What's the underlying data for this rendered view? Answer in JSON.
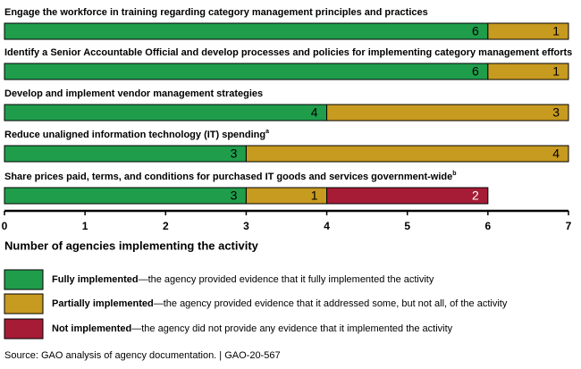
{
  "chart_data": {
    "type": "stacked-barh",
    "categories": [
      "Engage the workforce in training regarding category management principles and practices",
      "Identify a Senior Accountable Official and develop processes and policies for implementing category management efforts",
      "Develop and implement vendor management strategies",
      "Reduce unaligned information technology (IT) spending",
      "Share prices paid, terms, and conditions for purchased IT goods and services government-wide"
    ],
    "category_superscripts": {
      "3": "a",
      "4": "b"
    },
    "series": [
      {
        "name": "Fully implemented",
        "description": "—the agency provided evidence that it fully implemented the activity",
        "color": "#1f9d4b",
        "values": [
          6,
          6,
          4,
          3,
          3
        ]
      },
      {
        "name": "Partially implemented",
        "description": "—the agency provided evidence that it addressed some, but not all, of the activity",
        "color": "#c79a20",
        "values": [
          1,
          1,
          3,
          4,
          1
        ]
      },
      {
        "name": "Not implemented",
        "description": "—the agency did not provide any evidence that it implemented the activity",
        "color": "#a61c37",
        "values": [
          0,
          0,
          0,
          0,
          2
        ]
      }
    ],
    "xlabel": "Number of agencies implementing the activity",
    "xlim": [
      0,
      7
    ],
    "xticks": [
      0,
      1,
      2,
      3,
      4,
      5,
      6,
      7
    ],
    "source": "Source: GAO analysis of agency documentation.  |  GAO-20-567"
  }
}
